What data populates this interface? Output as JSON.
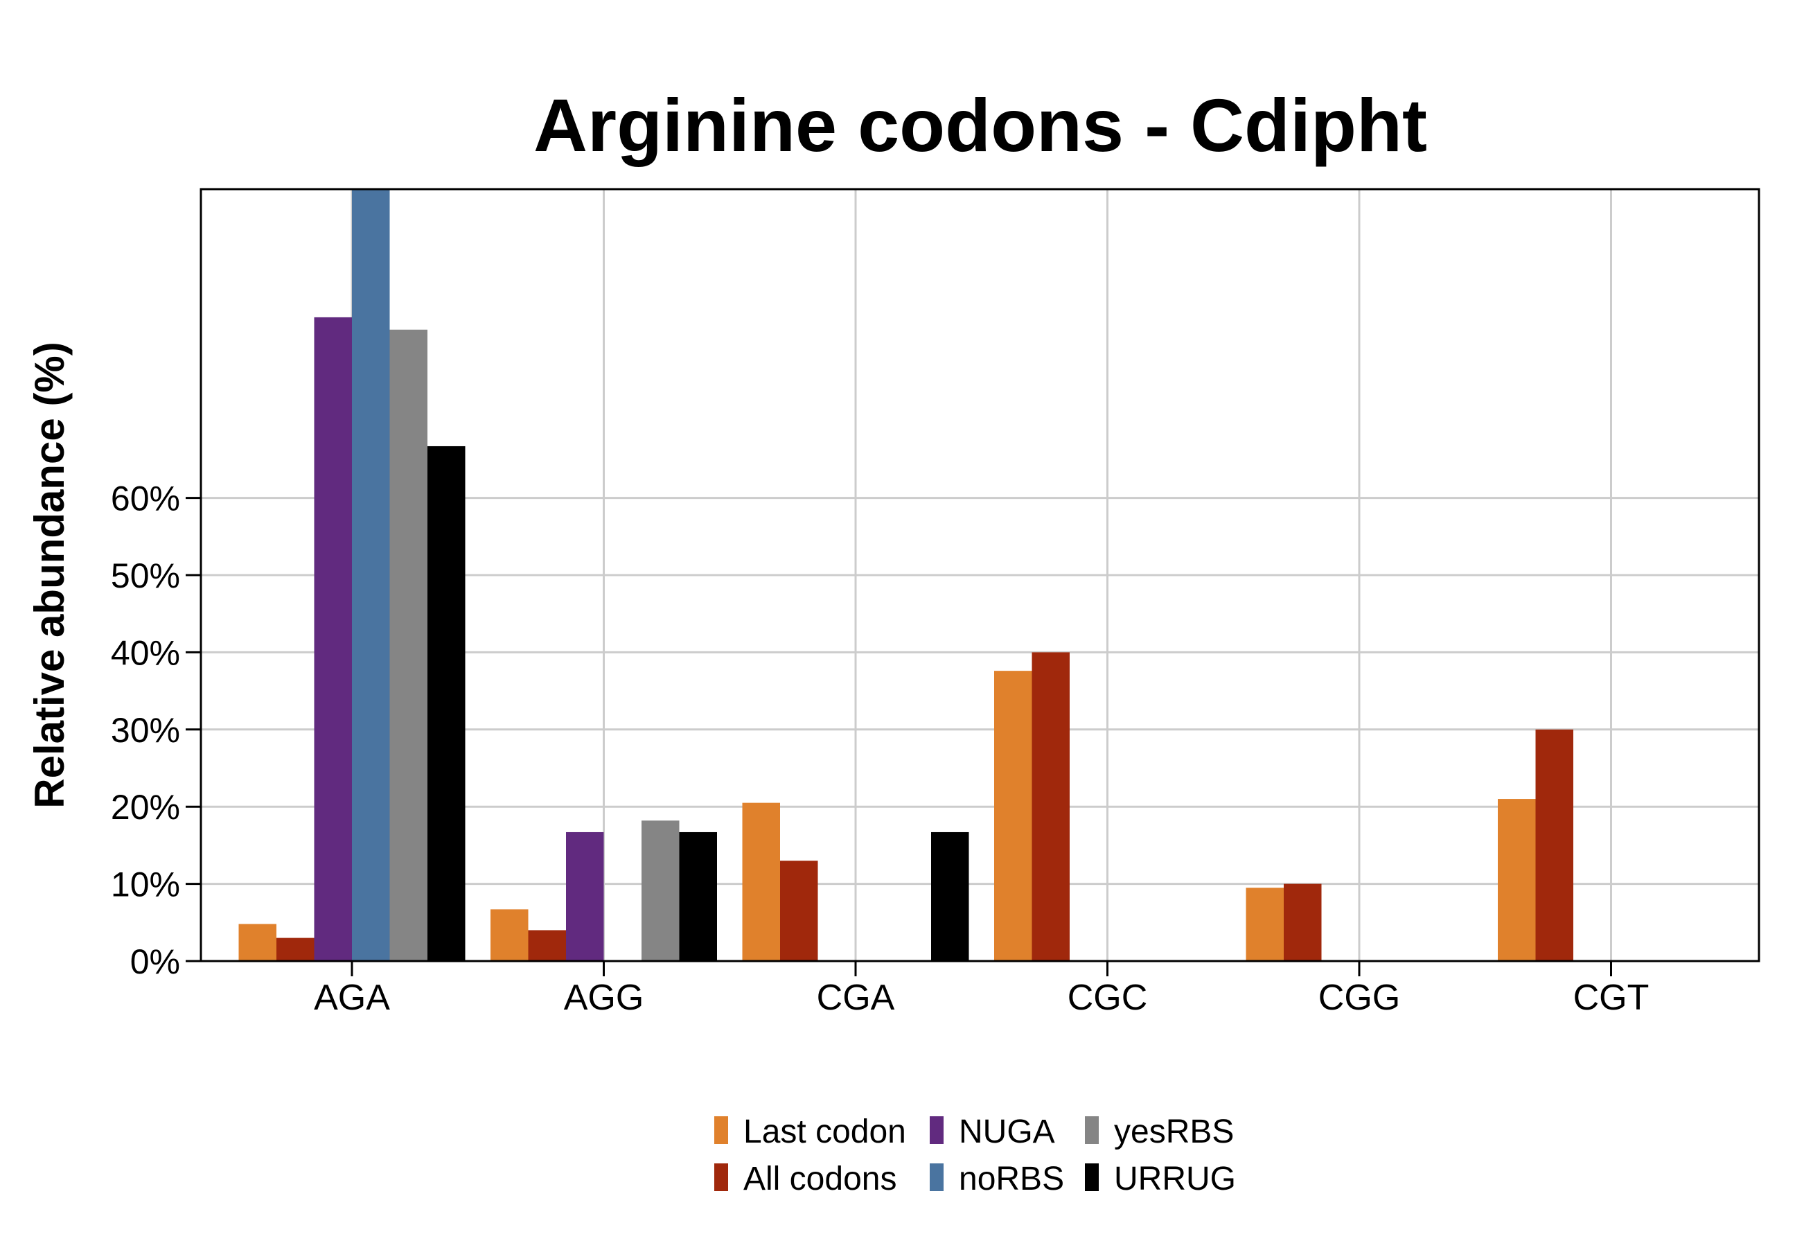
{
  "chart_data": {
    "type": "bar",
    "title": "Arginine codons - Cdipht",
    "xlabel": "",
    "ylabel": "Relative abundance (%)",
    "categories": [
      "AGA",
      "AGG",
      "CGA",
      "CGC",
      "CGG",
      "CGT"
    ],
    "ylim": [
      0,
      100
    ],
    "yticks": [
      0,
      10,
      20,
      30,
      40,
      50,
      60
    ],
    "ytick_labels": [
      "0%",
      "10%",
      "20%",
      "30%",
      "40%",
      "50%",
      "60%"
    ],
    "grid": true,
    "legend_position": "bottom",
    "series": [
      {
        "name": "Last codon",
        "color": "#E0812C",
        "values": [
          4.8,
          6.7,
          20.5,
          37.6,
          9.5,
          21.0
        ]
      },
      {
        "name": "All codons",
        "color": "#A0280C",
        "values": [
          3.0,
          4.0,
          13.0,
          40.0,
          10.0,
          30.0
        ]
      },
      {
        "name": "NUGA",
        "color": "#612A7F",
        "values": [
          83.4,
          16.7,
          0,
          0,
          0,
          0
        ]
      },
      {
        "name": "noRBS",
        "color": "#4A74A0",
        "values": [
          100,
          0,
          0,
          0,
          0,
          0
        ]
      },
      {
        "name": "yesRBS",
        "color": "#858585",
        "values": [
          81.8,
          18.2,
          0,
          0,
          0,
          0
        ]
      },
      {
        "name": "URRUG",
        "color": "#000000",
        "values": [
          66.7,
          16.7,
          16.7,
          0,
          0,
          0
        ]
      }
    ]
  }
}
